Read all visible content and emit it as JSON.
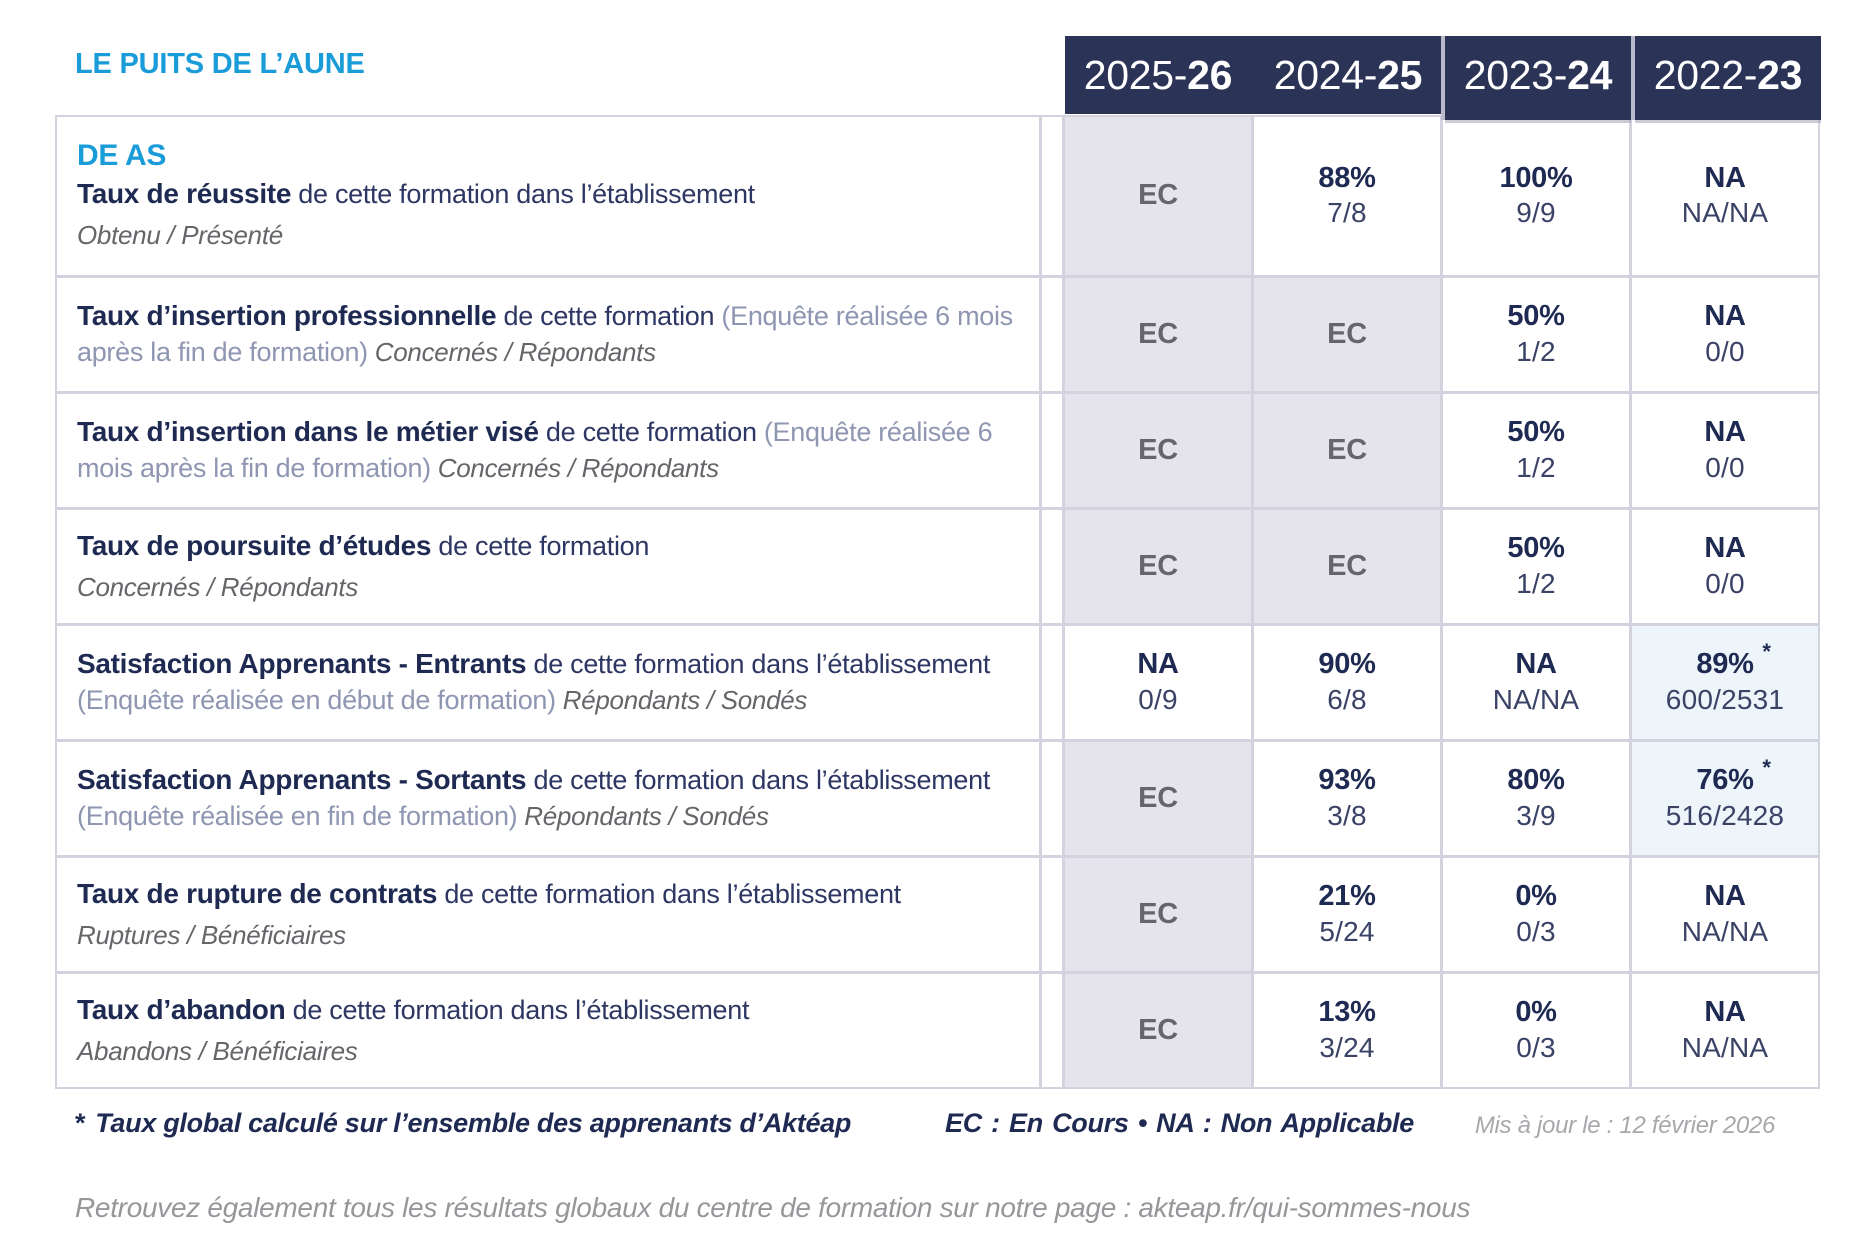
{
  "header": {
    "org_title": "LE PUITS DE L’AUNE",
    "years": [
      {
        "prefix": "2025-",
        "suffix": "26"
      },
      {
        "prefix": "2024-",
        "suffix": "25"
      },
      {
        "prefix": "2023-",
        "suffix": "24"
      },
      {
        "prefix": "2022-",
        "suffix": "23"
      }
    ]
  },
  "table": {
    "program": "DE AS",
    "rows": [
      {
        "title": "Taux de réussite",
        "desc": "de cette formation dans l’établissement",
        "paren": "",
        "sub": "Obtenu / Présenté",
        "sub_inline": false,
        "cells": [
          {
            "type": "ec",
            "main": "EC"
          },
          {
            "type": "value",
            "main": "88%",
            "fraction": "7/8"
          },
          {
            "type": "value",
            "main": "100%",
            "fraction": "9/9"
          },
          {
            "type": "value",
            "main": "NA",
            "fraction": "NA/NA"
          }
        ]
      },
      {
        "title": "Taux d’insertion professionnelle",
        "desc": "de cette formation",
        "paren": "(Enquête réalisée 6 mois après la fin de formation)",
        "sub": "Concernés / Répondants",
        "sub_inline": true,
        "cells": [
          {
            "type": "ec",
            "main": "EC"
          },
          {
            "type": "ec",
            "main": "EC"
          },
          {
            "type": "value",
            "main": "50%",
            "fraction": "1/2"
          },
          {
            "type": "value",
            "main": "NA",
            "fraction": "0/0"
          }
        ]
      },
      {
        "title": "Taux d’insertion dans le métier visé",
        "desc": "de cette formation",
        "paren": "(Enquête réalisée 6 mois après la fin de formation)",
        "sub": "Concernés / Répondants",
        "sub_inline": true,
        "cells": [
          {
            "type": "ec",
            "main": "EC"
          },
          {
            "type": "ec",
            "main": "EC"
          },
          {
            "type": "value",
            "main": "50%",
            "fraction": "1/2"
          },
          {
            "type": "value",
            "main": "NA",
            "fraction": "0/0"
          }
        ]
      },
      {
        "title": "Taux de poursuite d’études",
        "desc": "de cette formation",
        "paren": "",
        "sub": "Concernés / Répondants",
        "sub_inline": false,
        "cells": [
          {
            "type": "ec",
            "main": "EC"
          },
          {
            "type": "ec",
            "main": "EC"
          },
          {
            "type": "value",
            "main": "50%",
            "fraction": "1/2"
          },
          {
            "type": "value",
            "main": "NA",
            "fraction": "0/0"
          }
        ]
      },
      {
        "title": "Satisfaction Apprenants - Entrants",
        "desc": "de cette formation dans l’établissement",
        "paren": "(Enquête réalisée en début de formation)",
        "sub": "Répondants / Sondés",
        "sub_inline": true,
        "cells": [
          {
            "type": "value",
            "main": "NA",
            "fraction": "0/9"
          },
          {
            "type": "value",
            "main": "90%",
            "fraction": "6/8"
          },
          {
            "type": "value",
            "main": "NA",
            "fraction": "NA/NA"
          },
          {
            "type": "highlight",
            "main": "89%",
            "star": true,
            "fraction": "600/2531"
          }
        ]
      },
      {
        "title": "Satisfaction Apprenants - Sortants",
        "desc": "de cette formation dans l’établissement",
        "paren": "(Enquête réalisée en fin de formation)",
        "sub": "Répondants / Sondés",
        "sub_inline": true,
        "cells": [
          {
            "type": "ec",
            "main": "EC"
          },
          {
            "type": "value",
            "main": "93%",
            "fraction": "3/8"
          },
          {
            "type": "value",
            "main": "80%",
            "fraction": "3/9"
          },
          {
            "type": "highlight",
            "main": "76%",
            "star": true,
            "fraction": "516/2428"
          }
        ]
      },
      {
        "title": "Taux de rupture de contrats",
        "desc": "de cette formation dans l’établissement",
        "paren": "",
        "sub": "Ruptures / Bénéficiaires",
        "sub_inline": false,
        "cells": [
          {
            "type": "ec",
            "main": "EC"
          },
          {
            "type": "value",
            "main": "21%",
            "fraction": "5/24"
          },
          {
            "type": "value",
            "main": "0%",
            "fraction": "0/3"
          },
          {
            "type": "value",
            "main": "NA",
            "fraction": "NA/NA"
          }
        ]
      },
      {
        "title": "Taux d’abandon",
        "desc": "de cette formation dans l’établissement",
        "paren": "",
        "sub": "Abandons / Bénéficiaires",
        "sub_inline": false,
        "cells": [
          {
            "type": "ec",
            "main": "EC"
          },
          {
            "type": "value",
            "main": "13%",
            "fraction": "3/24"
          },
          {
            "type": "value",
            "main": "0%",
            "fraction": "0/3"
          },
          {
            "type": "value",
            "main": "NA",
            "fraction": "NA/NA"
          }
        ]
      }
    ]
  },
  "footer": {
    "star": "*",
    "note": "Taux global calculé sur l’ensemble des apprenants d’Aktéap",
    "legend": "EC : En Cours • NA : Non Applicable",
    "updated": "Mis à jour le : 12 février 2026",
    "bottom_note": "Retrouvez également tous les résultats globaux du centre de formation sur notre page : akteap.fr/qui-sommes-nous"
  },
  "colors": {
    "header_navy": "#2b3356",
    "accent_blue": "#1a9cd8",
    "ec_cell_bg": "#e5e4ed",
    "highlight_cell_bg": "#edf5fb",
    "grid_border": "#d2d3de"
  }
}
